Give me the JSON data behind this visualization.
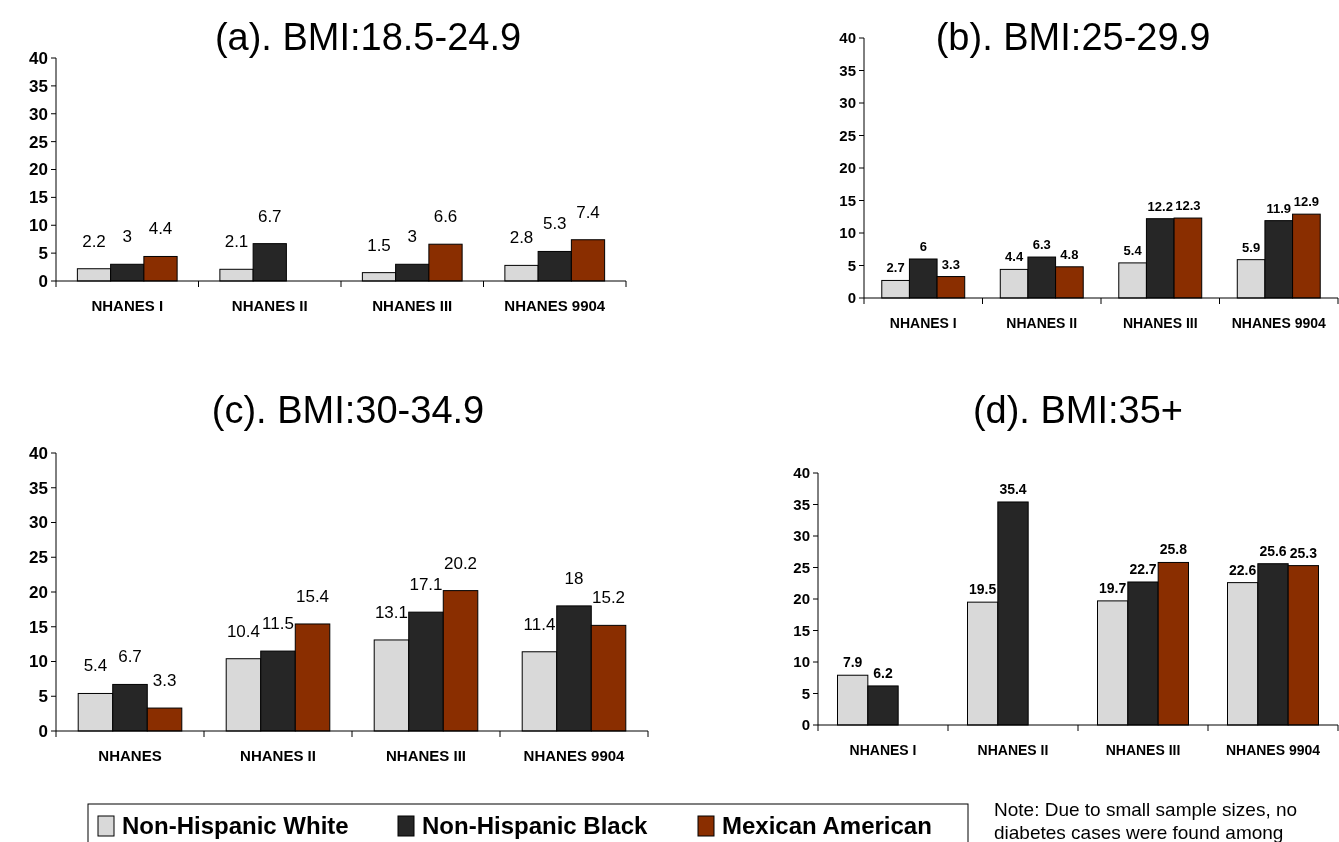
{
  "chart_data": [
    {
      "type": "bar",
      "title": "(a). BMI:18.5-24.9",
      "categories": [
        "NHANES I",
        "NHANES II",
        "NHANES III",
        "NHANES 9904"
      ],
      "series": [
        {
          "color": "#d9d9d9",
          "values": [
            2.2,
            2.1,
            1.5,
            2.8
          ]
        },
        {
          "color": "#262626",
          "values": [
            3,
            6.7,
            3,
            5.3
          ]
        },
        {
          "color": "#8a2e00",
          "values": [
            4.4,
            null,
            6.6,
            7.4
          ]
        }
      ],
      "ylim": [
        0,
        40
      ],
      "yticks": [
        0,
        5,
        10,
        15,
        20,
        25,
        30,
        35,
        40
      ],
      "data_labels": true,
      "grid": false,
      "legend": false
    },
    {
      "type": "bar",
      "title": "(b). BMI:25-29.9",
      "categories": [
        "NHANES I",
        "NHANES II",
        "NHANES III",
        "NHANES 9904"
      ],
      "series": [
        {
          "color": "#d9d9d9",
          "values": [
            2.7,
            4.4,
            5.4,
            5.9
          ]
        },
        {
          "color": "#262626",
          "values": [
            6,
            6.3,
            12.2,
            11.9
          ]
        },
        {
          "color": "#8a2e00",
          "values": [
            3.3,
            4.8,
            12.3,
            12.9
          ]
        }
      ],
      "ylim": [
        0,
        40
      ],
      "yticks": [
        0,
        5,
        10,
        15,
        20,
        25,
        30,
        35,
        40
      ],
      "data_labels": true,
      "grid": false,
      "legend": false
    },
    {
      "type": "bar",
      "title": "(c). BMI:30-34.9",
      "categories": [
        "NHANES",
        "NHANES II",
        "NHANES III",
        "NHANES 9904"
      ],
      "series": [
        {
          "name": "Non-Hispanic White",
          "color": "#d9d9d9",
          "values": [
            5.4,
            10.4,
            13.1,
            11.4
          ]
        },
        {
          "name": "Non-Hispanic Black",
          "color": "#262626",
          "values": [
            6.7,
            11.5,
            17.1,
            18
          ]
        },
        {
          "name": "Mexican American",
          "color": "#8a2e00",
          "values": [
            3.3,
            15.4,
            20.2,
            15.2
          ]
        }
      ],
      "ylim": [
        0,
        40
      ],
      "yticks": [
        0,
        5,
        10,
        15,
        20,
        25,
        30,
        35,
        40
      ],
      "data_labels": true,
      "grid": false,
      "legend": "bottom"
    },
    {
      "type": "bar",
      "title": "(d). BMI:35+",
      "categories": [
        "NHANES I",
        "NHANES II",
        "NHANES III",
        "NHANES 9904"
      ],
      "series": [
        {
          "color": "#d9d9d9",
          "values": [
            7.9,
            19.5,
            19.7,
            22.6
          ]
        },
        {
          "color": "#262626",
          "values": [
            6.2,
            35.4,
            22.7,
            25.6
          ]
        },
        {
          "color": "#8a2e00",
          "values": [
            null,
            null,
            25.8,
            25.3
          ]
        }
      ],
      "ylim": [
        0,
        40
      ],
      "yticks": [
        0,
        5,
        10,
        15,
        20,
        25,
        30,
        35,
        40
      ],
      "data_labels": true,
      "grid": false,
      "legend": false,
      "annotations": [
        "Note: Due to small sample sizes, no diabetes cases were found among"
      ]
    }
  ]
}
